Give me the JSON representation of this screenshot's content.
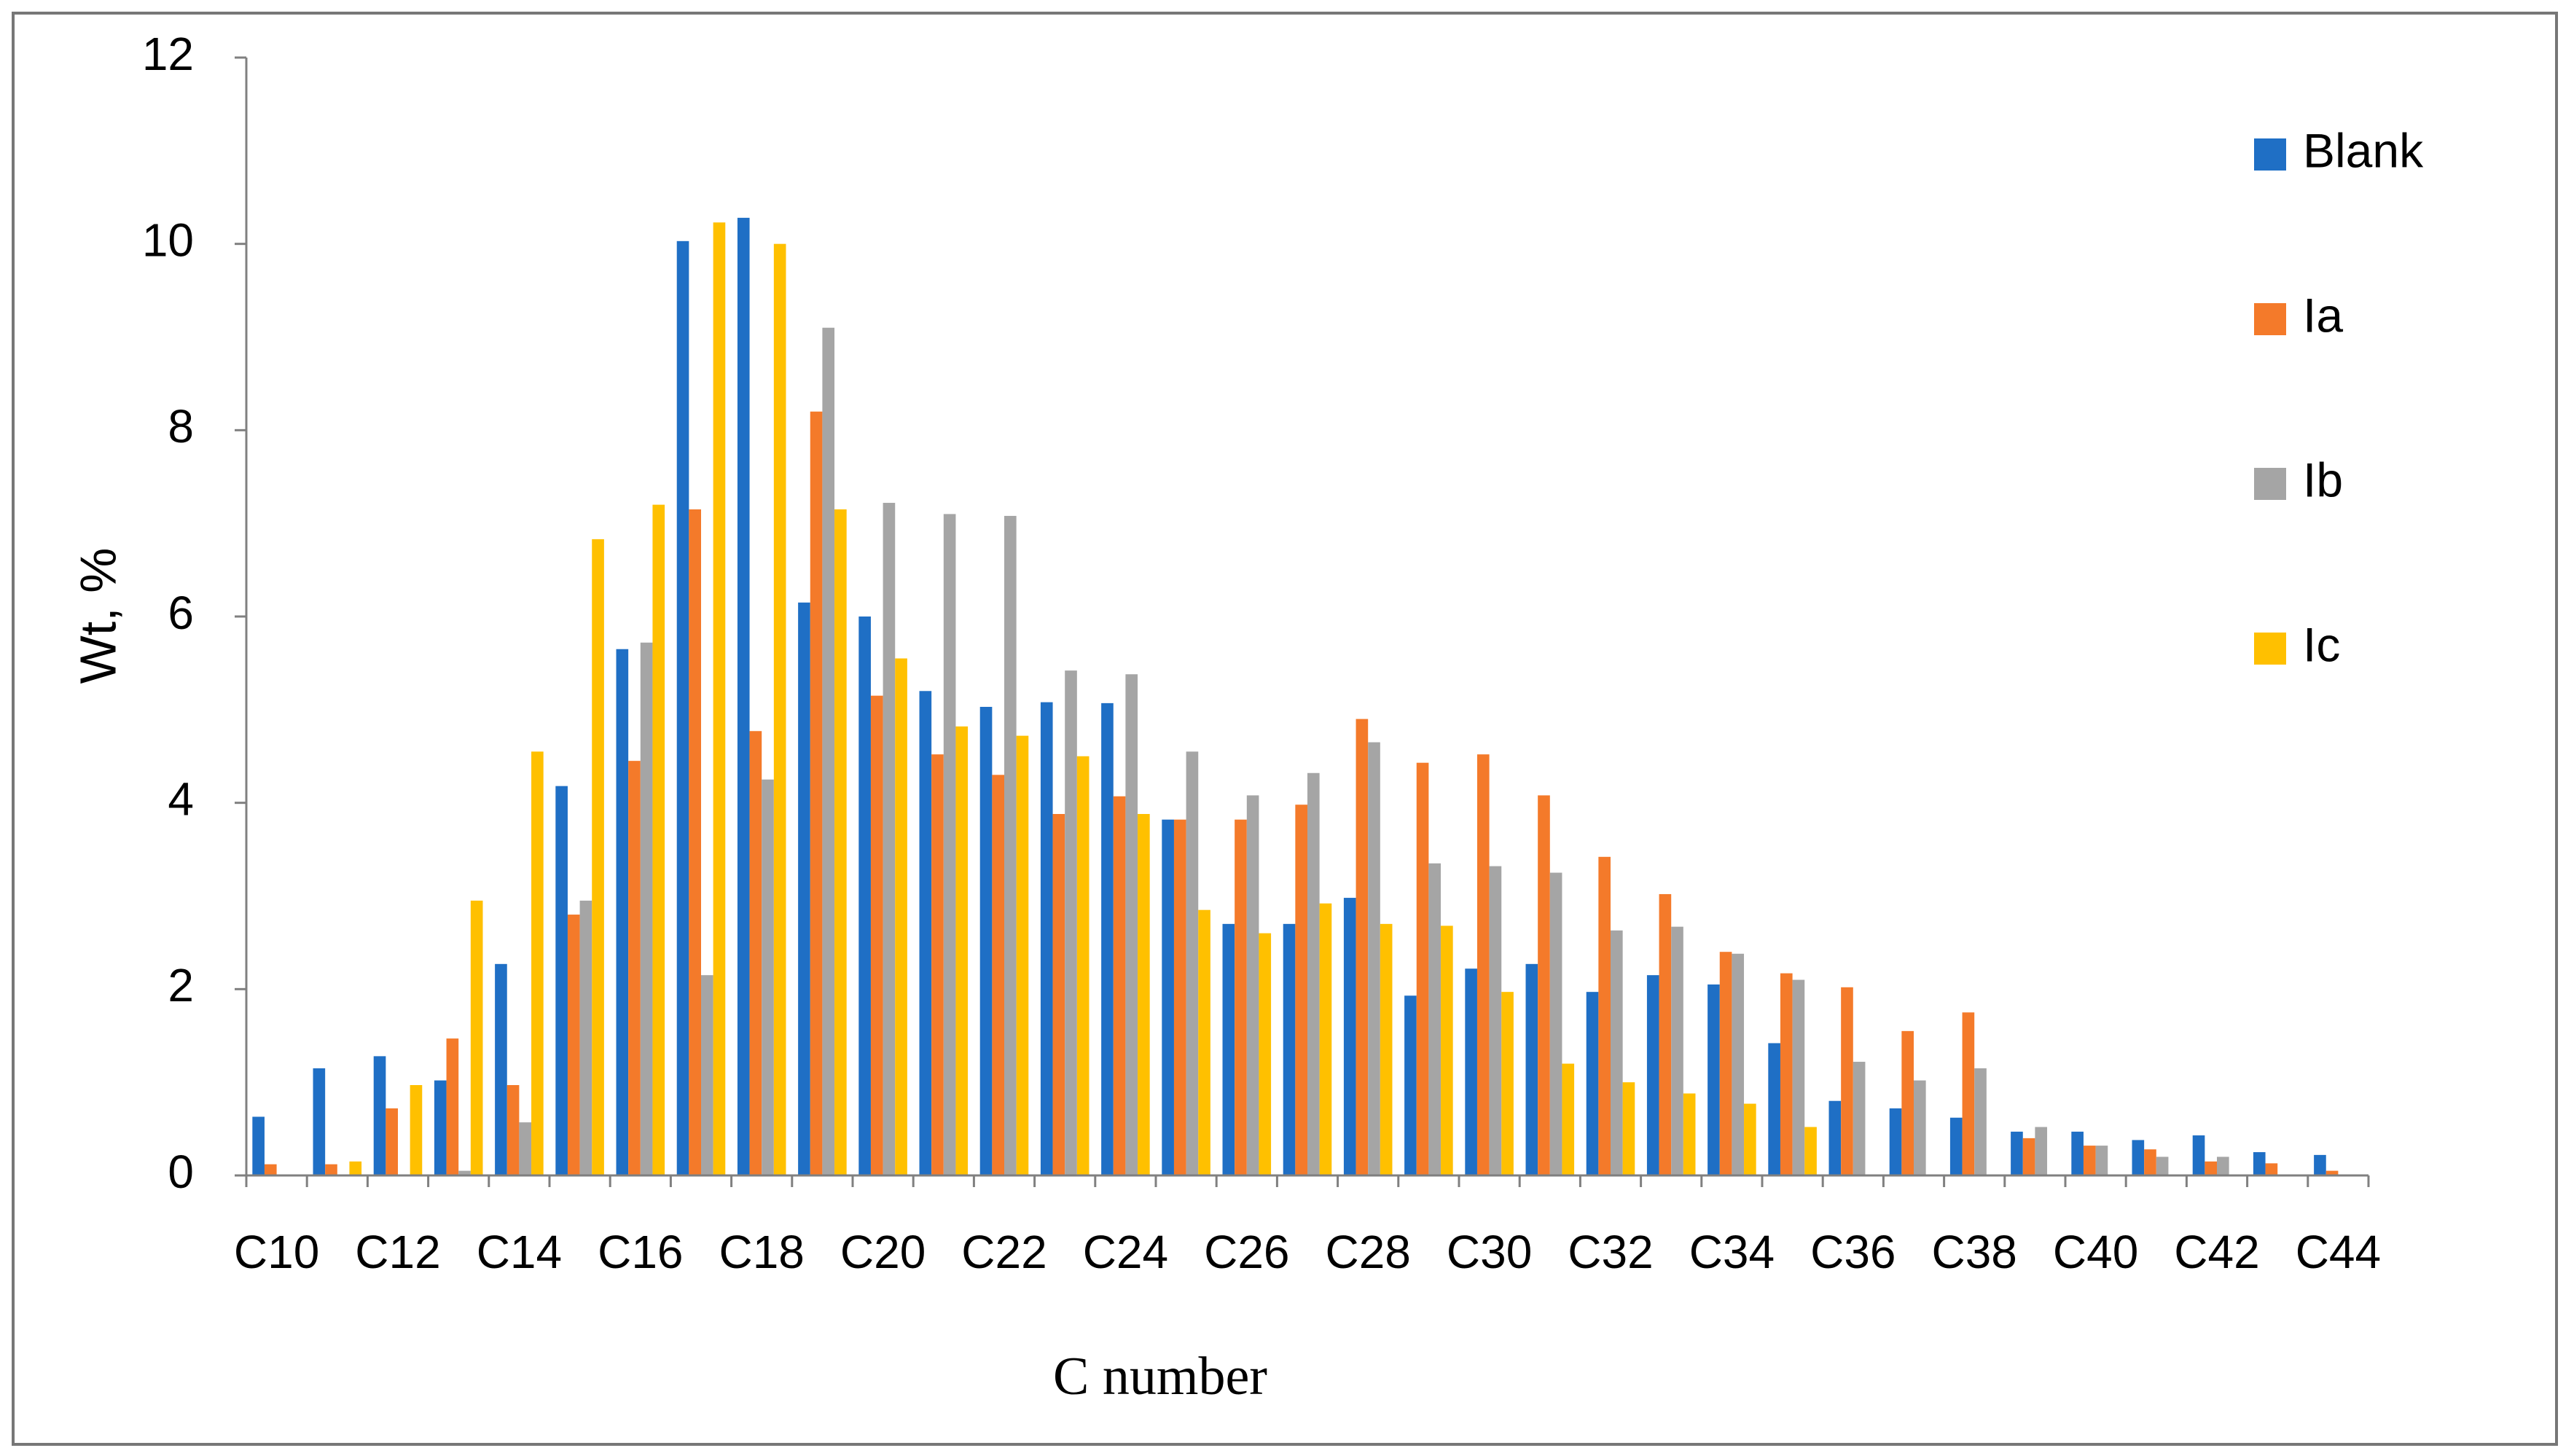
{
  "chart_data": {
    "type": "bar",
    "x_label": "C number",
    "y_label": "Wt, %",
    "categories": [
      "C10",
      null,
      "C12",
      null,
      "C14",
      null,
      "C16",
      null,
      "C18",
      null,
      "C20",
      null,
      "C22",
      null,
      "C24",
      null,
      "C26",
      null,
      "C28",
      null,
      "C30",
      null,
      "C32",
      null,
      "C34",
      null,
      "C36",
      null,
      "C38",
      null,
      "C40",
      null,
      "C42",
      null,
      "C44"
    ],
    "series": [
      {
        "name": "Blank",
        "color": "#1f6fc5",
        "values": [
          0.63,
          1.15,
          1.28,
          1.02,
          2.27,
          4.18,
          5.65,
          10.03,
          10.28,
          6.15,
          6.0,
          5.2,
          5.03,
          5.08,
          5.07,
          3.82,
          2.7,
          2.7,
          2.98,
          1.93,
          2.22,
          2.27,
          1.97,
          2.15,
          2.05,
          1.42,
          0.8,
          0.72,
          0.62,
          0.47,
          0.47,
          0.38,
          0.43,
          0.25,
          0.22
        ]
      },
      {
        "name": "Ia",
        "color": "#f47a2a",
        "values": [
          0.12,
          0.12,
          0.72,
          1.47,
          0.97,
          2.8,
          4.45,
          7.15,
          4.77,
          8.2,
          5.15,
          4.52,
          4.3,
          3.88,
          4.07,
          3.82,
          3.82,
          3.98,
          4.9,
          4.43,
          4.52,
          4.08,
          3.42,
          3.02,
          2.4,
          2.17,
          2.02,
          1.55,
          1.75,
          0.4,
          0.32,
          0.28,
          0.15,
          0.13,
          0.05
        ]
      },
      {
        "name": "Ib",
        "color": "#a5a5a5",
        "values": [
          0,
          0,
          0,
          0.05,
          0.57,
          2.95,
          5.72,
          2.15,
          4.25,
          9.1,
          7.22,
          7.1,
          7.08,
          5.42,
          5.38,
          4.55,
          4.08,
          4.32,
          4.65,
          3.35,
          3.32,
          3.25,
          2.63,
          2.67,
          2.38,
          2.1,
          1.22,
          1.02,
          1.15,
          0.52,
          0.32,
          0.2,
          0.2,
          0,
          0
        ]
      },
      {
        "name": "Ic",
        "color": "#ffc000",
        "values": [
          0,
          0.15,
          0.97,
          2.95,
          4.55,
          6.83,
          7.2,
          10.23,
          10.0,
          7.15,
          5.55,
          4.82,
          4.72,
          4.5,
          3.88,
          2.85,
          2.6,
          2.92,
          2.7,
          2.68,
          1.97,
          1.2,
          1.0,
          0.88,
          0.77,
          0.52,
          0,
          0,
          0,
          0,
          0,
          0,
          0,
          0,
          0
        ]
      }
    ],
    "ylim": [
      0,
      12
    ],
    "yticks": [
      0,
      2,
      4,
      6,
      8,
      10,
      12
    ],
    "grid": false,
    "legend": "right"
  }
}
